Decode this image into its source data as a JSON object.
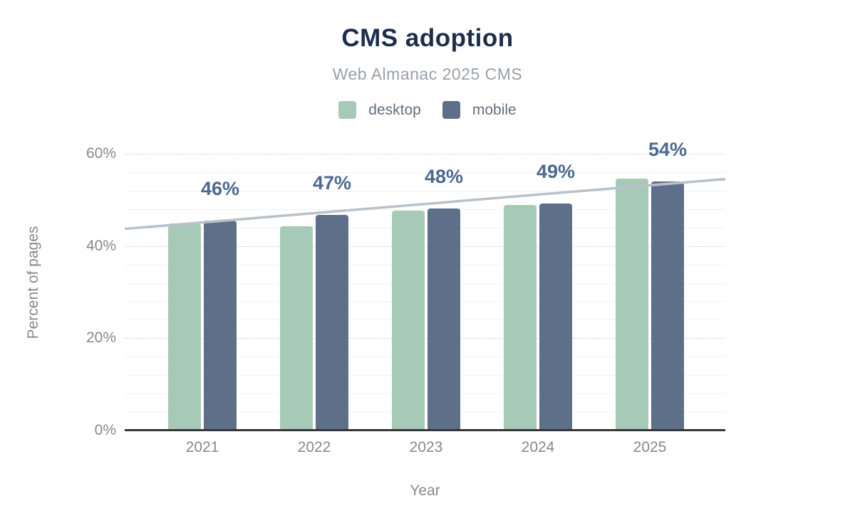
{
  "chart_data": {
    "type": "bar",
    "title": "CMS adoption",
    "subtitle": "Web Almanac 2025 CMS",
    "xlabel": "Year",
    "ylabel": "Percent of pages",
    "categories": [
      "2021",
      "2022",
      "2023",
      "2024",
      "2025"
    ],
    "series": [
      {
        "name": "desktop",
        "color": "#a7c9b8",
        "values": [
          44.9,
          44.3,
          47.7,
          48.9,
          54.6
        ]
      },
      {
        "name": "mobile",
        "color": "#5e7089",
        "values": [
          45.5,
          46.8,
          48.1,
          49.2,
          54.0
        ]
      }
    ],
    "data_labels": [
      "46%",
      "47%",
      "48%",
      "49%",
      "54%"
    ],
    "data_label_color": "#4d6990",
    "trendline": {
      "start_pct": 43.7,
      "end_pct": 54.5,
      "color": "#b8c1cb"
    },
    "y_ticks": [
      {
        "value": 0,
        "label": "0%"
      },
      {
        "value": 20,
        "label": "20%"
      },
      {
        "value": 40,
        "label": "40%"
      },
      {
        "value": 60,
        "label": "60%"
      }
    ],
    "ylim": [
      0,
      64
    ],
    "minor_grid_step": 4,
    "grid": true,
    "legend_position": "top",
    "colors": {
      "title": "#1d2e4d",
      "subtitle": "#9aa1a9",
      "axis_text": "#84898f",
      "legend_text": "#646f7b",
      "axis_line": "#343639",
      "gridline_major": "#c7cbd1",
      "gridline_minor": "#f1f2f4",
      "background": "#ffffff"
    }
  }
}
